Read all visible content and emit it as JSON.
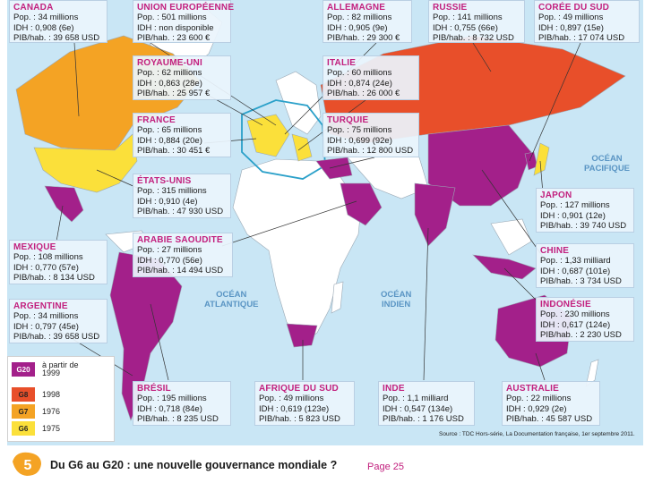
{
  "map": {
    "title": "Du G6 au G20 : une nouvelle gouvernance mondiale ?",
    "figure_number": "5",
    "page_label": "Page 25",
    "source": "Source : TDC Hors-série, La Documentation française, 1er septembre 2011.",
    "oceans": [
      {
        "line1": "OCÉAN",
        "line2": "PACIFIQUE"
      },
      {
        "line1": "OCÉAN",
        "line2": "ATLANTIQUE"
      },
      {
        "line1": "OCÉAN",
        "line2": "INDIEN"
      }
    ],
    "legend": {
      "items": [
        {
          "code": "G20",
          "text": "à partir de 1999",
          "color": "#a3208a"
        },
        {
          "code": "G8",
          "text": "1998",
          "color": "#e84f2a"
        },
        {
          "code": "G7",
          "text": "1976",
          "color": "#f4a324"
        },
        {
          "code": "G6",
          "text": "1975",
          "color": "#fbe03a"
        }
      ]
    },
    "countries": [
      {
        "name": "CANADA",
        "pop": "Pop. : 34 millions",
        "idh": "IDH : 0,908 (6e)",
        "pib": "PIB/hab. : 39 658 USD",
        "group": "G7"
      },
      {
        "name": "UNION EUROPÉENNE",
        "pop": "Pop. : 501 millions",
        "idh": "IDH : non disponible",
        "pib": "PIB/hab. : 23 600 €",
        "group": "G20"
      },
      {
        "name": "ALLEMAGNE",
        "pop": "Pop. : 82 millions",
        "idh": "IDH : 0,905 (9e)",
        "pib": "PIB/hab. : 29 300 €",
        "group": "G6"
      },
      {
        "name": "RUSSIE",
        "pop": "Pop. : 141 millions",
        "idh": "IDH : 0,755 (66e)",
        "pib": "PIB/hab. : 8 732 USD",
        "group": "G8"
      },
      {
        "name": "CORÉE DU SUD",
        "pop": "Pop. : 49 millions",
        "idh": "IDH : 0,897 (15e)",
        "pib": "PIB/hab. : 17 074 USD",
        "group": "G20"
      },
      {
        "name": "ROYAUME-UNI",
        "pop": "Pop. : 62 millions",
        "idh": "IDH : 0,863 (28e)",
        "pib": "PIB/hab. : 25 957 €",
        "group": "G6"
      },
      {
        "name": "ITALIE",
        "pop": "Pop. : 60 millions",
        "idh": "IDH : 0,874 (24e)",
        "pib": "PIB/hab. : 26 000 €",
        "group": "G6"
      },
      {
        "name": "FRANCE",
        "pop": "Pop. : 65 millions",
        "idh": "IDH : 0,884 (20e)",
        "pib": "PIB/hab. : 30 451 €",
        "group": "G6"
      },
      {
        "name": "TURQUIE",
        "pop": "Pop. : 75 millions",
        "idh": "IDH : 0,699 (92e)",
        "pib": "PIB/hab. : 12 800 USD",
        "group": "G20"
      },
      {
        "name": "ÉTATS-UNIS",
        "pop": "Pop. : 315 millions",
        "idh": "IDH : 0,910 (4e)",
        "pib": "PIB/hab. : 47 930 USD",
        "group": "G6"
      },
      {
        "name": "JAPON",
        "pop": "Pop. : 127 millions",
        "idh": "IDH : 0,901 (12e)",
        "pib": "PIB/hab. : 39 740 USD",
        "group": "G6"
      },
      {
        "name": "MEXIQUE",
        "pop": "Pop. : 108 millions",
        "idh": "IDH : 0,770 (57e)",
        "pib": "PIB/hab. : 8 134 USD",
        "group": "G20"
      },
      {
        "name": "ARABIE SAOUDITE",
        "pop": "Pop. : 27 millions",
        "idh": "IDH : 0,770 (56e)",
        "pib": "PIB/hab. : 14 494 USD",
        "group": "G20"
      },
      {
        "name": "CHINE",
        "pop": "Pop. : 1,33 milliard",
        "idh": "IDH : 0,687 (101e)",
        "pib": "PIB/hab. : 3 734 USD",
        "group": "G20"
      },
      {
        "name": "ARGENTINE",
        "pop": "Pop. : 34 millions",
        "idh": "IDH : 0,797 (45e)",
        "pib": "PIB/hab. : 39 658 USD",
        "group": "G20"
      },
      {
        "name": "INDONÉSIE",
        "pop": "Pop. : 230 millions",
        "idh": "IDH : 0,617 (124e)",
        "pib": "PIB/hab. : 2 230 USD",
        "group": "G20"
      },
      {
        "name": "BRÉSIL",
        "pop": "Pop. : 195 millions",
        "idh": "IDH : 0,718 (84e)",
        "pib": "PIB/hab. : 8 235 USD",
        "group": "G20"
      },
      {
        "name": "AFRIQUE DU SUD",
        "pop": "Pop. : 49 millions",
        "idh": "IDH : 0,619 (123e)",
        "pib": "PIB/hab. : 5 823 USD",
        "group": "G20"
      },
      {
        "name": "INDE",
        "pop": "Pop. : 1,1 milliard",
        "idh": "IDH : 0,547 (134e)",
        "pib": "PIB/hab. : 1 176 USD",
        "group": "G20"
      },
      {
        "name": "AUSTRALIE",
        "pop": "Pop. : 22 millions",
        "idh": "IDH : 0,929 (2e)",
        "pib": "PIB/hab. : 45 587 USD",
        "group": "G20"
      }
    ]
  }
}
